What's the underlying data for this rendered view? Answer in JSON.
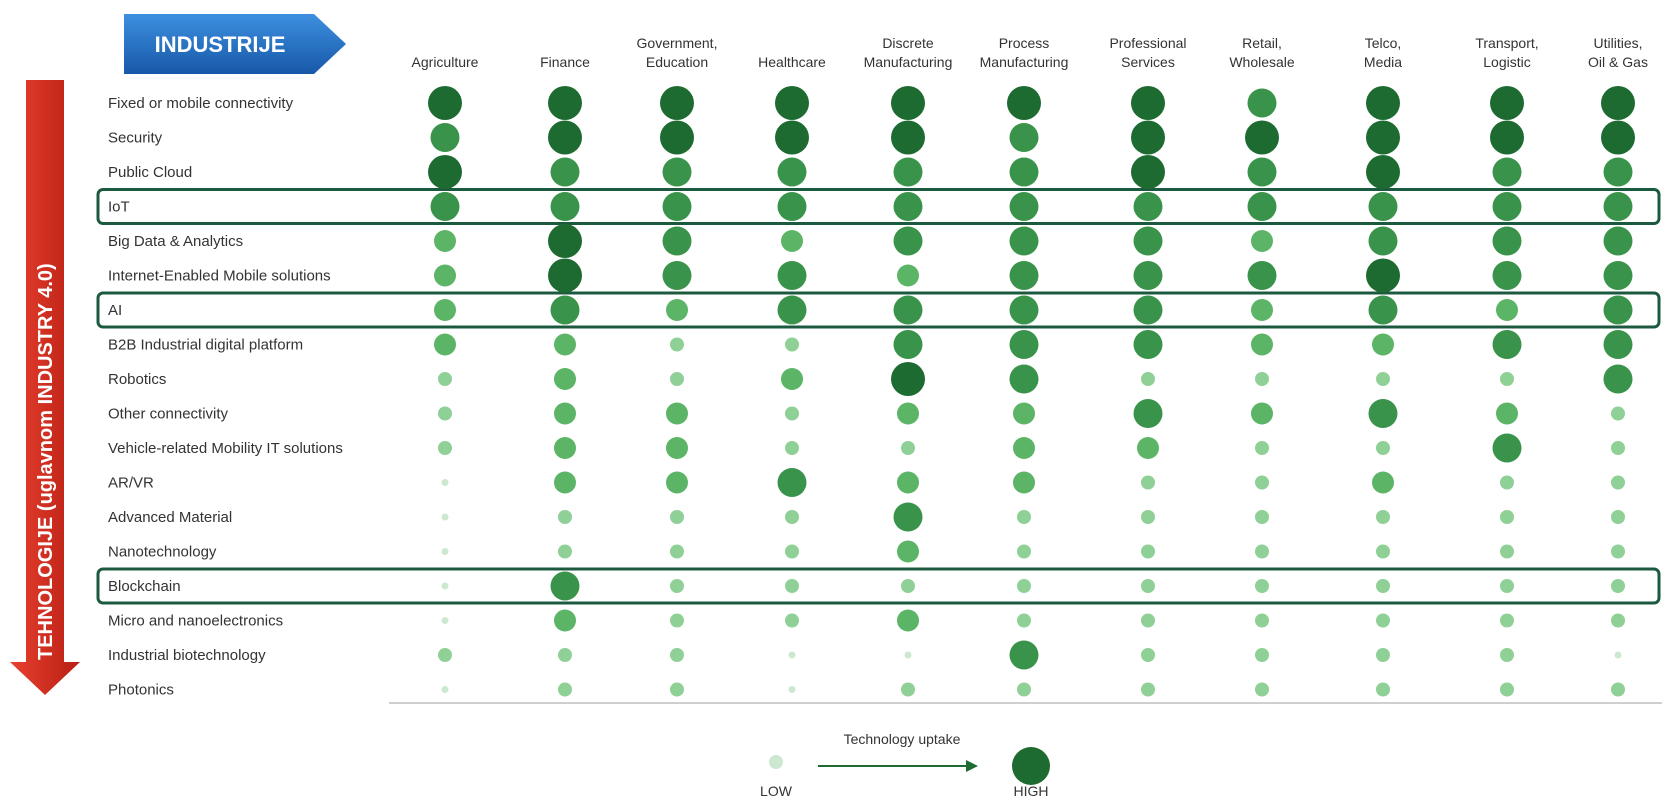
{
  "chart_data": {
    "type": "bubble-matrix",
    "industries_label": "INDUSTRIJE",
    "technologies_label": "TEHNOLOGIJE (uglavnom INDUSTRY 4.0)",
    "columns": [
      [
        "Agriculture"
      ],
      [
        "Finance"
      ],
      [
        "Government,",
        "Education"
      ],
      [
        "Healthcare"
      ],
      [
        "Discrete",
        "Manufacturing"
      ],
      [
        "Process",
        "Manufacturing"
      ],
      [
        "Professional",
        "Services"
      ],
      [
        "Retail,",
        "Wholesale"
      ],
      [
        "Telco,",
        "Media"
      ],
      [
        "Transport,",
        "Logistic"
      ],
      [
        "Utilities,",
        "Oil & Gas"
      ]
    ],
    "rows": [
      "Fixed or mobile connectivity",
      "Security",
      "Public Cloud",
      "IoT",
      "Big Data & Analytics",
      "Internet-Enabled Mobile solutions",
      "AI",
      "B2B Industrial digital platform",
      "Robotics",
      "Other connectivity",
      "Vehicle-related Mobility IT solutions",
      "AR/VR",
      "Advanced Material",
      "Nanotechnology",
      "Blockchain",
      "Micro and nanoelectronics",
      "Industrial biotechnology",
      "Photonics"
    ],
    "highlighted_rows": [
      "IoT",
      "AI",
      "Blockchain"
    ],
    "scale": {
      "min": 1,
      "max": 5,
      "low_label": "LOW",
      "high_label": "HIGH"
    },
    "values": [
      [
        5,
        5,
        5,
        5,
        5,
        5,
        5,
        4,
        5,
        5,
        5
      ],
      [
        4,
        5,
        5,
        5,
        5,
        4,
        5,
        5,
        5,
        5,
        5
      ],
      [
        5,
        4,
        4,
        4,
        4,
        4,
        5,
        4,
        5,
        4,
        4
      ],
      [
        4,
        4,
        4,
        4,
        4,
        4,
        4,
        4,
        4,
        4,
        4
      ],
      [
        3,
        5,
        4,
        3,
        4,
        4,
        4,
        3,
        4,
        4,
        4
      ],
      [
        3,
        5,
        4,
        4,
        3,
        4,
        4,
        4,
        5,
        4,
        4
      ],
      [
        3,
        4,
        3,
        4,
        4,
        4,
        4,
        3,
        4,
        3,
        4
      ],
      [
        3,
        3,
        2,
        2,
        4,
        4,
        4,
        3,
        3,
        4,
        4
      ],
      [
        2,
        3,
        2,
        3,
        5,
        4,
        2,
        2,
        2,
        2,
        4
      ],
      [
        2,
        3,
        3,
        2,
        3,
        3,
        4,
        3,
        4,
        3,
        2
      ],
      [
        2,
        3,
        3,
        2,
        2,
        3,
        3,
        2,
        2,
        4,
        2
      ],
      [
        1,
        3,
        3,
        4,
        3,
        3,
        2,
        2,
        3,
        2,
        2
      ],
      [
        1,
        2,
        2,
        2,
        4,
        2,
        2,
        2,
        2,
        2,
        2
      ],
      [
        1,
        2,
        2,
        2,
        3,
        2,
        2,
        2,
        2,
        2,
        2
      ],
      [
        1,
        4,
        2,
        2,
        2,
        2,
        2,
        2,
        2,
        2,
        2
      ],
      [
        1,
        3,
        2,
        2,
        3,
        2,
        2,
        2,
        2,
        2,
        2
      ],
      [
        2,
        2,
        2,
        1,
        1,
        4,
        2,
        2,
        2,
        2,
        1
      ],
      [
        1,
        2,
        2,
        1,
        2,
        2,
        2,
        2,
        2,
        2,
        2
      ]
    ],
    "legend": {
      "title": "Technology uptake"
    },
    "colors": {
      "1": "#cde8d0",
      "2": "#8fd096",
      "3": "#5cb566",
      "4": "#3a934a",
      "5": "#1e6b32",
      "highlight_border": "#1c5a40",
      "industries_arrow": "#1f6fbf",
      "technologies_arrow": "#d42a1e",
      "axis_line": "#bfbfbf"
    }
  }
}
